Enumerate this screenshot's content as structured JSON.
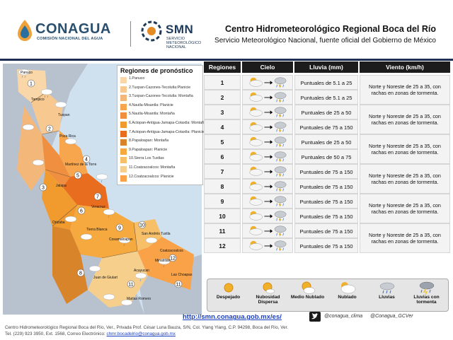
{
  "header": {
    "conagua_name": "CONAGUA",
    "conagua_sub": "COMISIÓN NACIONAL DEL AGUA",
    "smn_name": "SMN",
    "smn_sub_1": "SERVICIO",
    "smn_sub_2": "METEOROLÓGICO",
    "smn_sub_3": "NACIONAL",
    "title": "Centro Hidrometeorológico Regional Boca del Río",
    "subtitle": "Servicio Meteorológico Nacional, fuente oficial del Gobierno de México"
  },
  "map": {
    "legend_title": "Regiones de pronóstico",
    "legend_items": [
      {
        "label": "1.Panuco",
        "color": "#f9d7a8"
      },
      {
        "label": "2.Tuxpan-Cazones-Tecolutla:Planicie",
        "color": "#f7c991"
      },
      {
        "label": "3.Tuxpan-Cazones-Tecolutla: Montaña",
        "color": "#f4b77a"
      },
      {
        "label": "4.Nautla-Misantla: Planicie",
        "color": "#f7a64d"
      },
      {
        "label": "5.Nautla-Misantla: Montaña",
        "color": "#ef8f3f"
      },
      {
        "label": "6.Actopan-Antigua-Jamapa-Cotaxtla: Montaña",
        "color": "#f19a2d"
      },
      {
        "label": "7.Actopan-Antigua-Jamapa-Cotaxtla: Planicie",
        "color": "#e96d1f"
      },
      {
        "label": "8.Papaloapan: Montaña",
        "color": "#d8842b"
      },
      {
        "label": "9.Papaloapan: Planicie",
        "color": "#f5a93f"
      },
      {
        "label": "10.Sierra Los Tuxtlas",
        "color": "#f6bf68"
      },
      {
        "label": "11.Coatzacoalcos: Montaña",
        "color": "#f7cf8d"
      },
      {
        "label": "12.Coatzacoalcos: Planicie",
        "color": "#f9a248"
      }
    ],
    "region_markers": [
      "1",
      "2",
      "3",
      "4",
      "5",
      "6",
      "7",
      "8",
      "9",
      "10",
      "11",
      "12"
    ],
    "place_labels": [
      "Panuco",
      "Tampico",
      "Tuxpan",
      "Poza Rica",
      "Martínez de la Torre",
      "Jalapa",
      "Veracruz",
      "Orizaba",
      "Tierra Blanca",
      "Cosamaloapan",
      "Acayucan",
      "Coatzacoalcos",
      "San Andrés Tuxtla",
      "Las Choapas",
      "Minatitlán",
      "Juan de Giulart",
      "Matías Romero"
    ]
  },
  "table": {
    "headers": {
      "region": "Regiones",
      "sky": "Cielo",
      "rain": "Lluvia (mm)",
      "wind": "Viento (km/h)"
    },
    "rows": [
      {
        "region": "1",
        "rain": "Puntuales de 5.1 a 25"
      },
      {
        "region": "2",
        "rain": "Puntuales de 5.1 a 25"
      },
      {
        "region": "3",
        "rain": "Puntuales de 25 a 50"
      },
      {
        "region": "4",
        "rain": "Puntuales de 75 a 150"
      },
      {
        "region": "5",
        "rain": "Puntuales de 25 a 50"
      },
      {
        "region": "6",
        "rain": "Puntuales de 50 a 75"
      },
      {
        "region": "7",
        "rain": "Puntuales de 75 a 150"
      },
      {
        "region": "8",
        "rain": "Puntuales de 75 a 150"
      },
      {
        "region": "9",
        "rain": "Puntuales de 75 a 150"
      },
      {
        "region": "10",
        "rain": "Puntuales de 75 a 150"
      },
      {
        "region": "11",
        "rain": "Puntuales de 75 a 150"
      },
      {
        "region": "12",
        "rain": "Puntuales de 75 a 150"
      }
    ],
    "wind_groups": [
      {
        "text": "Norte y Noreste de 25 a 35, con rachas en zonas de tormenta."
      },
      {
        "text": "Norte y Noreste de 25 a 35, con rachas en zonas de tormenta."
      },
      {
        "text": "Norte y Noreste de 25 a 35, con rachas en zonas de tormenta."
      },
      {
        "text": "Norte y Noreste de 25 a 35, con rachas en zonas de tormenta."
      },
      {
        "text": "Norte y Noreste de 25 a 35, con rachas en zonas de tormenta."
      },
      {
        "text": "Norte y Noreste de 25 a 35, con rachas en zonas de tormenta."
      }
    ]
  },
  "sky_legend": [
    {
      "label": "Despejado",
      "icon": "sun-icon"
    },
    {
      "label": "Nubosidad Dispersa",
      "icon": "sun-small-cloud-icon"
    },
    {
      "label": "Medio Nublado",
      "icon": "sun-cloud-icon"
    },
    {
      "label": "Nublado",
      "icon": "cloud-sun-behind-icon"
    },
    {
      "label": "Lluvias",
      "icon": "rain-cloud-icon"
    },
    {
      "label": "Lluvias con tormenta",
      "icon": "storm-cloud-icon"
    }
  ],
  "footer": {
    "url": "http://smn.conagua.gob.mx/es/",
    "twitter_1": "@conagua_clima",
    "twitter_2": "@Conagua_GCVer",
    "address": "Centro Hidrometeorológico Regional Boca del Río, Ver., Privada Prof. César Luna Bauza, S/N, Col. Ylang Ylang, C.P. 94298, Boca del Río, Ver.",
    "contact_prefix": "Tel. (229) 923 3950, Ext. 1568, Correo Electrónico:",
    "email": "chmr.bocadelrio@conagua.gob.mx"
  },
  "colors": {
    "accent": "#1d2f52",
    "link": "#1a3fbf"
  }
}
